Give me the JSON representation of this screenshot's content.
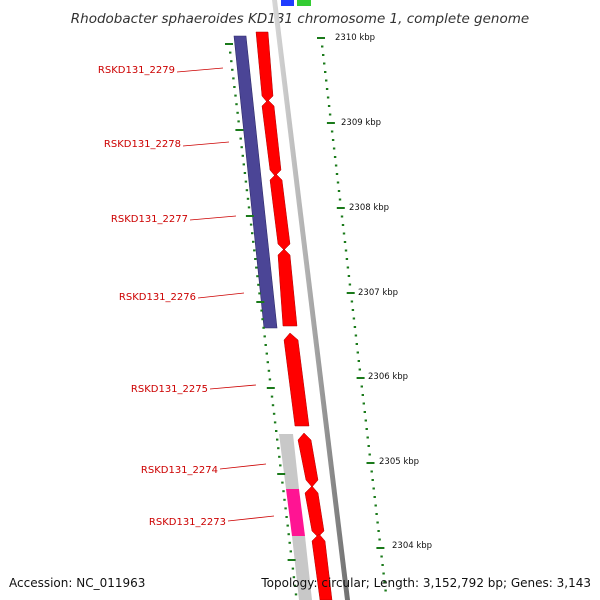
{
  "title": "Rhodobacter sphaeroides KD131 chromosome 1, complete genome",
  "footer": {
    "accession": "Accession: NC_011963",
    "topology": "Topology: circular; Length: 3,152,792 bp; Genes: 3,143"
  },
  "genes": [
    {
      "label": "RSKD131_2279"
    },
    {
      "label": "RSKD131_2278"
    },
    {
      "label": "RSKD131_2277"
    },
    {
      "label": "RSKD131_2276"
    },
    {
      "label": "RSKD131_2275"
    },
    {
      "label": "RSKD131_2274"
    },
    {
      "label": "RSKD131_2273"
    }
  ],
  "ruler": [
    "2310 kbp",
    "2309 kbp",
    "2308 kbp",
    "2307 kbp",
    "2306 kbp",
    "2305 kbp",
    "2304 kbp"
  ],
  "colors": {
    "cds": "#ff0000",
    "gene_group": "#4b4596",
    "grey_feature": "#c8c8c8",
    "pink_feature": "#ff1493",
    "blue_feature": "#1f3cff",
    "green_feature": "#33cc33",
    "backbone": "#8c8c8c",
    "tick": "#1a7a1a"
  }
}
